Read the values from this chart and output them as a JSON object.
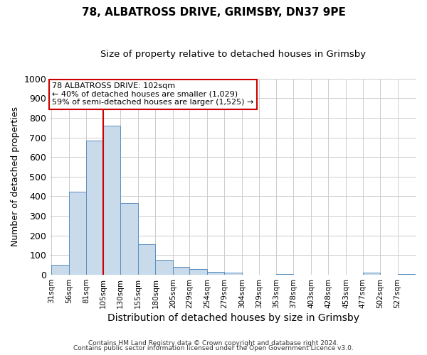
{
  "title": "78, ALBATROSS DRIVE, GRIMSBY, DN37 9PE",
  "subtitle": "Size of property relative to detached houses in Grimsby",
  "xlabel": "Distribution of detached houses by size in Grimsby",
  "ylabel": "Number of detached properties",
  "bar_color": "#c9daea",
  "bar_edge_color": "#5a8fc0",
  "bin_labels": [
    "31sqm",
    "56sqm",
    "81sqm",
    "105sqm",
    "130sqm",
    "155sqm",
    "180sqm",
    "205sqm",
    "229sqm",
    "254sqm",
    "279sqm",
    "304sqm",
    "329sqm",
    "353sqm",
    "378sqm",
    "403sqm",
    "428sqm",
    "453sqm",
    "477sqm",
    "502sqm",
    "527sqm"
  ],
  "bin_edges": [
    31,
    56,
    81,
    105,
    130,
    155,
    180,
    205,
    229,
    254,
    279,
    304,
    329,
    353,
    378,
    403,
    428,
    453,
    477,
    502,
    527,
    552
  ],
  "bar_heights": [
    50,
    425,
    685,
    760,
    365,
    155,
    75,
    40,
    30,
    15,
    10,
    0,
    0,
    5,
    0,
    0,
    0,
    0,
    10,
    0,
    5
  ],
  "property_line_x": 105,
  "ylim": [
    0,
    1000
  ],
  "yticks": [
    0,
    100,
    200,
    300,
    400,
    500,
    600,
    700,
    800,
    900,
    1000
  ],
  "annotation_title": "78 ALBATROSS DRIVE: 102sqm",
  "annotation_line1": "← 40% of detached houses are smaller (1,029)",
  "annotation_line2": "59% of semi-detached houses are larger (1,525) →",
  "annotation_box_color": "#ffffff",
  "annotation_border_color": "#cc0000",
  "red_line_color": "#cc0000",
  "grid_color": "#cccccc",
  "footer1": "Contains HM Land Registry data © Crown copyright and database right 2024.",
  "footer2": "Contains public sector information licensed under the Open Government Licence v3.0.",
  "background_color": "#ffffff",
  "plot_bg_color": "#ffffff"
}
